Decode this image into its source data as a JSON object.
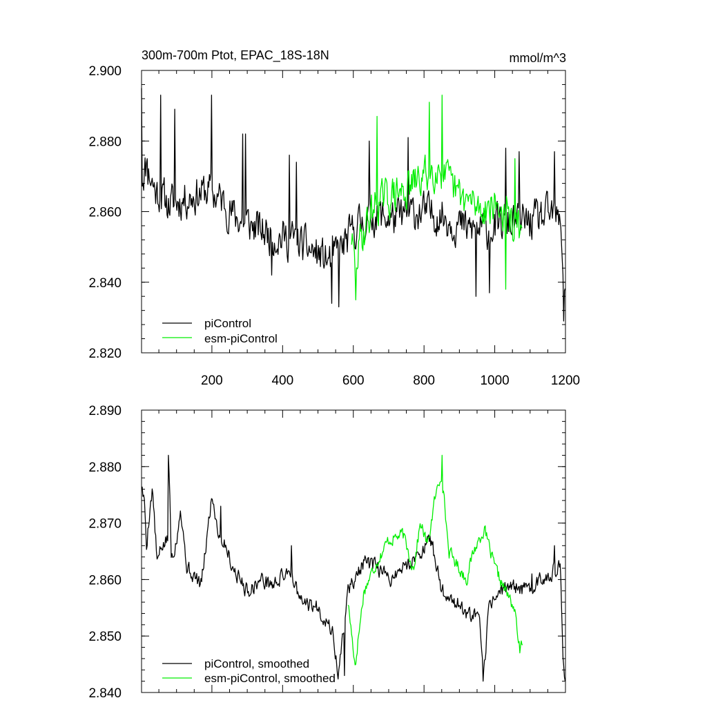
{
  "colors": {
    "picontrol": "#000000",
    "esm_picontrol": "#00ee00",
    "axes": "#000000"
  },
  "chart_data": [
    {
      "type": "line",
      "title": "300m-700m Ptot, EPAC_18S-18N",
      "units": "mmol/m^3",
      "xlim": [
        1,
        1200
      ],
      "ylim": [
        2.82,
        2.9
      ],
      "xticks": [
        200,
        400,
        600,
        800,
        1000,
        1200
      ],
      "xtick_labels": [
        "200",
        "400",
        "600",
        "800",
        "1000",
        "1200"
      ],
      "yticks": [
        2.82,
        2.84,
        2.86,
        2.88,
        2.9
      ],
      "ytick_labels": [
        "2.820",
        "2.840",
        "2.860",
        "2.880",
        "2.900"
      ],
      "legend": {
        "placement": "bottom-left",
        "entries": [
          "piControl",
          "esm-piControl"
        ]
      },
      "series": [
        {
          "name": "piControl",
          "color_key": "picontrol",
          "noise": 0.0085,
          "seed": 11,
          "anchors": [
            [
              1,
              2.87
            ],
            [
              15,
              2.873
            ],
            [
              40,
              2.866
            ],
            [
              80,
              2.862
            ],
            [
              130,
              2.864
            ],
            [
              190,
              2.866
            ],
            [
              230,
              2.863
            ],
            [
              260,
              2.859
            ],
            [
              330,
              2.855
            ],
            [
              380,
              2.853
            ],
            [
              430,
              2.852
            ],
            [
              480,
              2.849
            ],
            [
              530,
              2.846
            ],
            [
              570,
              2.85
            ],
            [
              610,
              2.856
            ],
            [
              660,
              2.859
            ],
            [
              720,
              2.858
            ],
            [
              780,
              2.86
            ],
            [
              850,
              2.859
            ],
            [
              920,
              2.855
            ],
            [
              980,
              2.855
            ],
            [
              1040,
              2.857
            ],
            [
              1100,
              2.857
            ],
            [
              1160,
              2.859
            ],
            [
              1188,
              2.856
            ],
            [
              1195,
              2.838
            ],
            [
              1200,
              2.84
            ]
          ],
          "spikes": [
            [
              2,
              2.895
            ],
            [
              18,
              2.875
            ],
            [
              55,
              2.893
            ],
            [
              95,
              2.889
            ],
            [
              200,
              2.893
            ],
            [
              288,
              2.882
            ],
            [
              295,
              2.882
            ],
            [
              370,
              2.842
            ],
            [
              420,
              2.876
            ],
            [
              440,
              2.874
            ],
            [
              540,
              2.834
            ],
            [
              560,
              2.833
            ],
            [
              645,
              2.88
            ],
            [
              755,
              2.881
            ],
            [
              948,
              2.836
            ],
            [
              985,
              2.837
            ],
            [
              1032,
              2.878
            ],
            [
              1070,
              2.877
            ],
            [
              1170,
              2.877
            ],
            [
              1196,
              2.829
            ]
          ]
        },
        {
          "name": "esm-piControl",
          "color_key": "esm_picontrol",
          "noise": 0.0085,
          "seed": 29,
          "anchors": [
            [
              595,
              2.853
            ],
            [
              605,
              2.843
            ],
            [
              620,
              2.852
            ],
            [
              660,
              2.862
            ],
            [
              700,
              2.864
            ],
            [
              750,
              2.866
            ],
            [
              800,
              2.87
            ],
            [
              840,
              2.873
            ],
            [
              880,
              2.866
            ],
            [
              920,
              2.863
            ],
            [
              960,
              2.861
            ],
            [
              1000,
              2.862
            ],
            [
              1040,
              2.858
            ],
            [
              1078,
              2.853
            ]
          ],
          "spikes": [
            [
              608,
              2.835
            ],
            [
              668,
              2.887
            ],
            [
              815,
              2.891
            ],
            [
              852,
              2.893
            ],
            [
              1032,
              2.838
            ],
            [
              1058,
              2.875
            ]
          ]
        }
      ]
    },
    {
      "type": "line",
      "title": "",
      "units": "",
      "xlim": [
        1,
        1200
      ],
      "ylim": [
        2.84,
        2.89
      ],
      "xticks": [
        200,
        400,
        600,
        800,
        1000,
        1200
      ],
      "xtick_labels": [],
      "yticks": [
        2.84,
        2.85,
        2.86,
        2.87,
        2.88,
        2.89
      ],
      "ytick_labels": [
        "2.840",
        "2.850",
        "2.860",
        "2.870",
        "2.880",
        "2.890"
      ],
      "legend": {
        "placement": "bottom-left",
        "entries": [
          "piControl, smoothed",
          "esm-piControl, smoothed"
        ]
      },
      "series": [
        {
          "name": "piControl, smoothed",
          "color_key": "picontrol",
          "noise": 0.0022,
          "seed": 5,
          "anchors": [
            [
              1,
              2.877
            ],
            [
              10,
              2.873
            ],
            [
              15,
              2.866
            ],
            [
              25,
              2.873
            ],
            [
              32,
              2.876
            ],
            [
              45,
              2.863
            ],
            [
              60,
              2.866
            ],
            [
              75,
              2.867
            ],
            [
              78,
              2.882
            ],
            [
              85,
              2.864
            ],
            [
              100,
              2.867
            ],
            [
              110,
              2.873
            ],
            [
              130,
              2.862
            ],
            [
              170,
              2.859
            ],
            [
              200,
              2.875
            ],
            [
              220,
              2.868
            ],
            [
              240,
              2.866
            ],
            [
              260,
              2.862
            ],
            [
              300,
              2.858
            ],
            [
              340,
              2.86
            ],
            [
              375,
              2.859
            ],
            [
              420,
              2.862
            ],
            [
              450,
              2.856
            ],
            [
              500,
              2.855
            ],
            [
              540,
              2.851
            ],
            [
              558,
              2.843
            ],
            [
              585,
              2.858
            ],
            [
              630,
              2.863
            ],
            [
              670,
              2.862
            ],
            [
              700,
              2.86
            ],
            [
              760,
              2.863
            ],
            [
              820,
              2.867
            ],
            [
              850,
              2.858
            ],
            [
              890,
              2.856
            ],
            [
              935,
              2.853
            ],
            [
              955,
              2.854
            ],
            [
              968,
              2.842
            ],
            [
              985,
              2.856
            ],
            [
              1040,
              2.859
            ],
            [
              1090,
              2.858
            ],
            [
              1150,
              2.861
            ],
            [
              1186,
              2.862
            ],
            [
              1193,
              2.845
            ],
            [
              1200,
              2.842
            ]
          ],
          "spikes": [
            [
              78,
              2.882
            ],
            [
              226,
              2.873
            ],
            [
              426,
              2.866
            ],
            [
              575,
              2.843
            ],
            [
              820,
              2.866
            ],
            [
              968,
              2.842
            ],
            [
              1105,
              2.861
            ],
            [
              1170,
              2.866
            ]
          ]
        },
        {
          "name": "esm-piControl, smoothed",
          "color_key": "esm_picontrol",
          "noise": 0.0018,
          "seed": 17,
          "anchors": [
            [
              585,
              2.856
            ],
            [
              605,
              2.845
            ],
            [
              630,
              2.858
            ],
            [
              665,
              2.863
            ],
            [
              700,
              2.867
            ],
            [
              740,
              2.868
            ],
            [
              770,
              2.862
            ],
            [
              790,
              2.87
            ],
            [
              810,
              2.866
            ],
            [
              830,
              2.874
            ],
            [
              850,
              2.879
            ],
            [
              870,
              2.865
            ],
            [
              900,
              2.862
            ],
            [
              920,
              2.86
            ],
            [
              940,
              2.865
            ],
            [
              970,
              2.869
            ],
            [
              1000,
              2.862
            ],
            [
              1030,
              2.858
            ],
            [
              1055,
              2.855
            ],
            [
              1072,
              2.847
            ],
            [
              1080,
              2.85
            ]
          ],
          "spikes": [
            [
              607,
              2.845
            ],
            [
              852,
              2.882
            ],
            [
              1072,
              2.847
            ]
          ]
        }
      ]
    }
  ]
}
